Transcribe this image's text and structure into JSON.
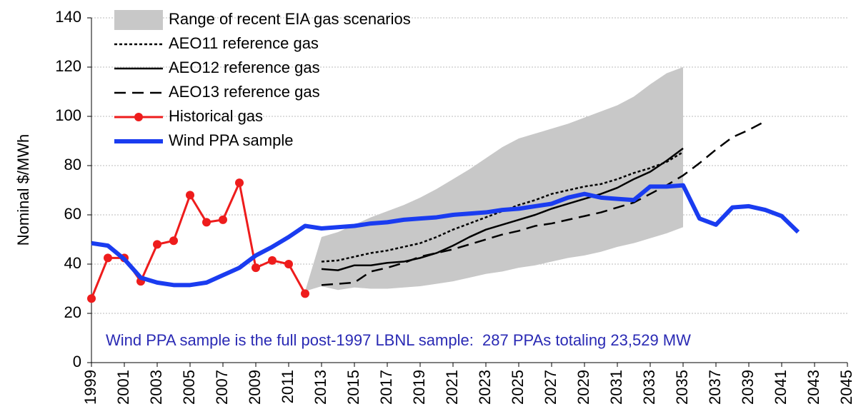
{
  "chart_data": {
    "type": "line",
    "y_label": "Nominal $/MWh",
    "annotation": "Wind PPA sample is the full post-1997 LBNL sample:  287 PPAs totaling 23,529 MW",
    "annotation_color": "#2a2ab4",
    "xlim": [
      1999,
      2045
    ],
    "xticks": [
      1999,
      2001,
      2003,
      2005,
      2007,
      2009,
      2011,
      2013,
      2015,
      2017,
      2019,
      2021,
      2023,
      2025,
      2027,
      2029,
      2031,
      2033,
      2035,
      2037,
      2039,
      2041,
      2043,
      2045
    ],
    "ylim": [
      0,
      140
    ],
    "yticks": [
      0,
      20,
      40,
      60,
      80,
      100,
      120,
      140
    ],
    "grid": true,
    "legend": "upper left",
    "series": [
      {
        "name": "Range of recent EIA gas scenarios",
        "kind": "range",
        "color": "#c8c8c8",
        "x": [
          2012,
          2013,
          2014,
          2015,
          2016,
          2017,
          2018,
          2019,
          2020,
          2021,
          2022,
          2023,
          2024,
          2025,
          2026,
          2027,
          2028,
          2029,
          2030,
          2031,
          2032,
          2033,
          2034,
          2035
        ],
        "low": [
          29,
          31,
          29.5,
          30.5,
          30,
          30,
          30.5,
          31,
          32,
          33,
          34.5,
          36,
          37,
          38.5,
          39.5,
          41,
          42.5,
          43.5,
          45,
          47,
          48.5,
          50.5,
          52.5,
          55
        ],
        "high": [
          29,
          51,
          53,
          56,
          59,
          61.5,
          64,
          67,
          70.5,
          74.5,
          78.5,
          83,
          87.5,
          91,
          93,
          95,
          97,
          99.5,
          102,
          104.5,
          108,
          113,
          117.5,
          120
        ]
      },
      {
        "name": "AEO11 reference gas",
        "kind": "line",
        "line_style": "dotted",
        "color": "#000000",
        "x": [
          2013,
          2014,
          2015,
          2016,
          2017,
          2018,
          2019,
          2020,
          2021,
          2022,
          2023,
          2024,
          2025,
          2026,
          2027,
          2028,
          2029,
          2030,
          2031,
          2032,
          2033,
          2034,
          2035
        ],
        "values": [
          41,
          41.5,
          43,
          44.5,
          45.5,
          47,
          48.5,
          51,
          54,
          56.5,
          59,
          61.5,
          64,
          66,
          68.5,
          70,
          71.5,
          72.5,
          74.5,
          77,
          79,
          81.5,
          85.5
        ]
      },
      {
        "name": "AEO12 reference gas",
        "kind": "line",
        "line_style": "solid",
        "color": "#000000",
        "x": [
          2013,
          2014,
          2015,
          2016,
          2017,
          2018,
          2019,
          2020,
          2021,
          2022,
          2023,
          2024,
          2025,
          2026,
          2027,
          2028,
          2029,
          2030,
          2031,
          2032,
          2033,
          2034,
          2035
        ],
        "values": [
          38,
          37.5,
          39.5,
          39.5,
          40.5,
          41,
          42.5,
          44.5,
          47.5,
          51,
          54,
          56,
          58,
          60,
          62.5,
          64.5,
          66.5,
          68.5,
          71,
          74.5,
          77.5,
          82,
          87
        ]
      },
      {
        "name": "AEO13 reference gas",
        "kind": "line",
        "line_style": "dashed",
        "color": "#000000",
        "x": [
          2013,
          2014,
          2015,
          2016,
          2017,
          2018,
          2019,
          2020,
          2021,
          2022,
          2023,
          2024,
          2025,
          2026,
          2027,
          2028,
          2029,
          2030,
          2031,
          2032,
          2033,
          2034,
          2035,
          2036,
          2037,
          2038,
          2039,
          2040
        ],
        "values": [
          31.5,
          32,
          32.5,
          37,
          38.5,
          40.5,
          43,
          44.5,
          46,
          48,
          50,
          52,
          53.5,
          55.5,
          56.5,
          58,
          59.5,
          61,
          63,
          65,
          68.5,
          72,
          76,
          81,
          86.5,
          91.5,
          94.5,
          98
        ]
      },
      {
        "name": "Historical gas",
        "kind": "line",
        "line_style": "solid",
        "marker": "circle",
        "color": "#ee1c1c",
        "x": [
          1999,
          2000,
          2001,
          2002,
          2003,
          2004,
          2005,
          2006,
          2007,
          2008,
          2009,
          2010,
          2011,
          2012
        ],
        "values": [
          26,
          42.5,
          42.5,
          33,
          48,
          49.5,
          68,
          57,
          58,
          73,
          38.5,
          41.5,
          40,
          28
        ]
      },
      {
        "name": "Wind PPA sample",
        "kind": "line",
        "line_style": "solid",
        "color": "#1a3cf0",
        "x": [
          1999,
          2000,
          2001,
          2002,
          2003,
          2004,
          2005,
          2006,
          2007,
          2008,
          2009,
          2010,
          2011,
          2012,
          2013,
          2014,
          2015,
          2016,
          2017,
          2018,
          2019,
          2020,
          2021,
          2022,
          2023,
          2024,
          2025,
          2026,
          2027,
          2028,
          2029,
          2030,
          2031,
          2032,
          2033,
          2034,
          2035,
          2036,
          2037,
          2038,
          2039,
          2040,
          2041,
          2042
        ],
        "values": [
          48.5,
          47.5,
          42,
          34.5,
          32.5,
          31.5,
          31.5,
          32.5,
          35.5,
          38.5,
          43.5,
          47,
          51,
          55.5,
          54.5,
          55,
          55.5,
          56.5,
          57,
          58,
          58.5,
          59,
          60,
          60.5,
          61,
          62,
          62.5,
          63.5,
          64.5,
          67,
          68.5,
          67,
          66.5,
          66,
          71.5,
          71.5,
          72,
          58.5,
          56,
          63,
          63.5,
          62,
          59.5,
          53
        ]
      }
    ]
  }
}
